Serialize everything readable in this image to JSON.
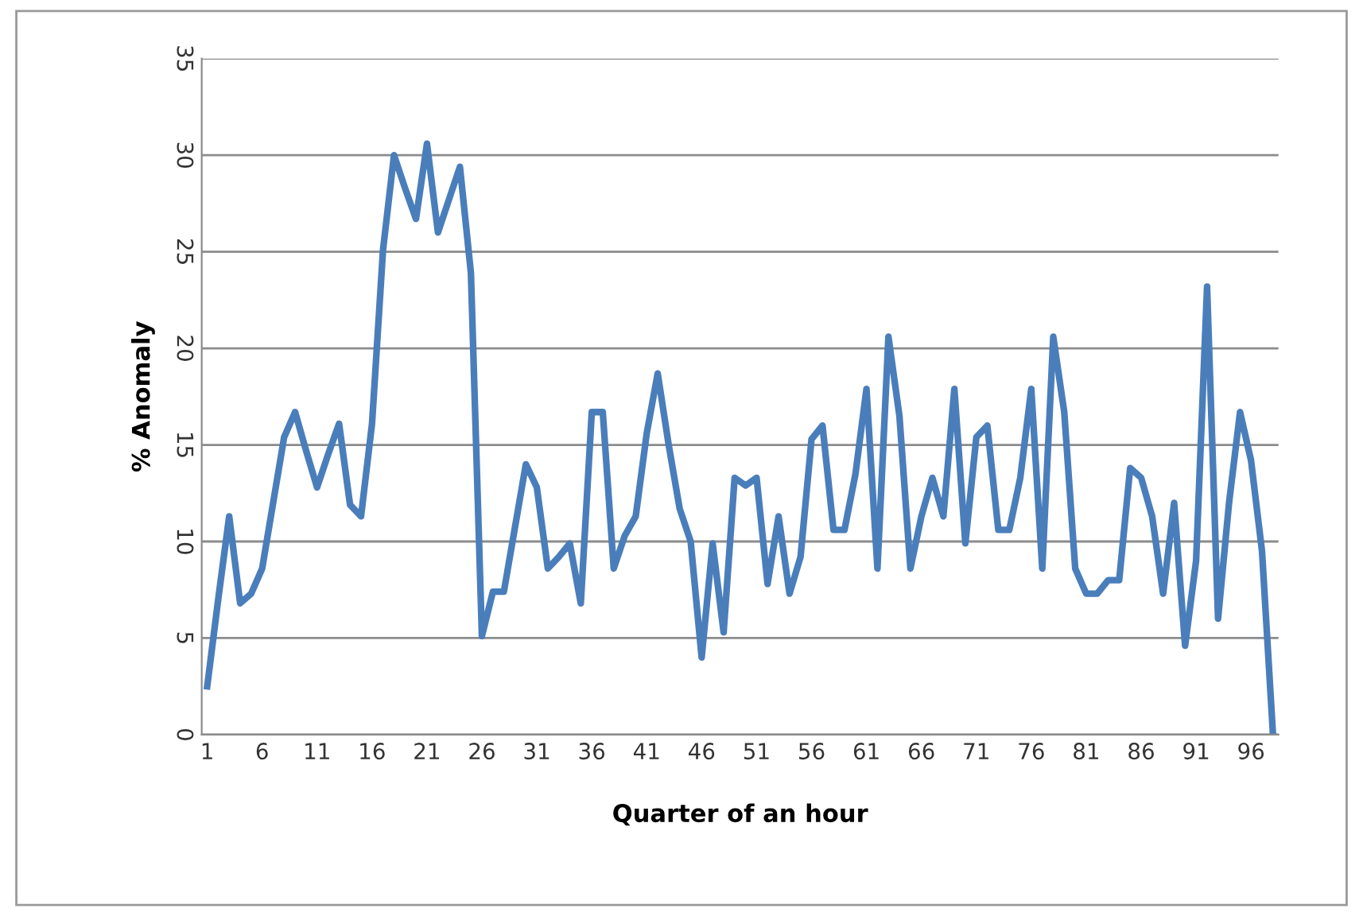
{
  "chart_data": {
    "type": "line",
    "xlabel": "Quarter of an hour",
    "ylabel": "% Anomaly",
    "categories": [
      "1",
      null,
      null,
      null,
      null,
      "6",
      null,
      null,
      null,
      null,
      "11",
      null,
      null,
      null,
      null,
      "16",
      null,
      null,
      null,
      null,
      "21",
      null,
      null,
      null,
      null,
      "26",
      null,
      null,
      null,
      null,
      "31",
      null,
      null,
      null,
      null,
      "36",
      null,
      null,
      null,
      null,
      "41",
      null,
      null,
      null,
      null,
      "46",
      null,
      null,
      null,
      null,
      "51",
      null,
      null,
      null,
      null,
      "56",
      null,
      null,
      null,
      null,
      "61",
      null,
      null,
      null,
      null,
      "66",
      null,
      null,
      null,
      null,
      "71",
      null,
      null,
      null,
      null,
      "76",
      null,
      null,
      null,
      null,
      "81",
      null,
      null,
      null,
      null,
      "86",
      null,
      null,
      null,
      null,
      "91",
      null,
      null,
      null,
      null,
      "96",
      null,
      null
    ],
    "series": [
      {
        "color": "#4a7ebb",
        "values": [
          2.5,
          7,
          11.3,
          6.8,
          7.3,
          8.6,
          12,
          15.4,
          16.7,
          14.7,
          12.8,
          14.5,
          16.1,
          11.9,
          11.3,
          16.1,
          25.1,
          30.0,
          28.3,
          26.7,
          30.6,
          26.0,
          27.7,
          29.4,
          23.9,
          5.1,
          7.4,
          7.4,
          10.7,
          14.0,
          12.8,
          8.6,
          9.2,
          9.9,
          6.8,
          16.7,
          16.7,
          8.6,
          10.3,
          11.3,
          15.6,
          18.7,
          15,
          11.7,
          10.0,
          4.0,
          9.9,
          5.3,
          13.3,
          12.9,
          13.3,
          7.8,
          11.3,
          7.3,
          9.2,
          15.3,
          16.0,
          10.6,
          10.6,
          13.5,
          17.9,
          8.6,
          20.6,
          16.5,
          8.6,
          11.3,
          13.3,
          11.3,
          17.9,
          9.9,
          15.4,
          16.0,
          10.6,
          10.6,
          13.3,
          17.9,
          8.6,
          20.6,
          16.7,
          8.6,
          7.3,
          7.3,
          8.0,
          8.0,
          13.8,
          13.3,
          11.3,
          7.3,
          12.0,
          4.6,
          9,
          23.2,
          6.0,
          12,
          16.7,
          14.2,
          9.5,
          0
        ]
      }
    ],
    "ylim": [
      0,
      35
    ],
    "yticks": [
      0,
      5,
      10,
      15,
      20,
      25,
      30,
      35
    ],
    "grid": "y",
    "marker": "none",
    "line_style": "solid"
  }
}
